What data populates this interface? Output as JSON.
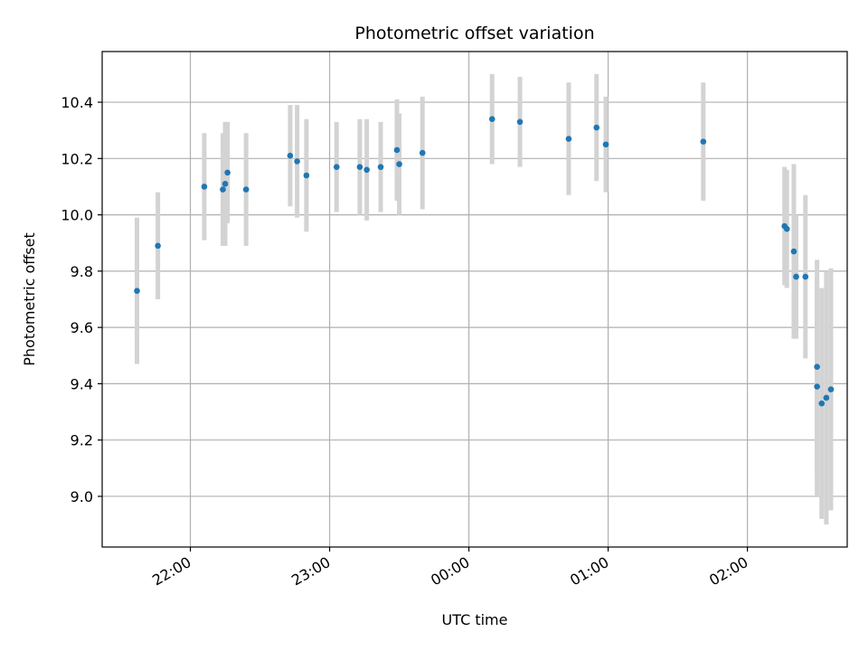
{
  "chart_data": {
    "type": "scatter",
    "title": "Photometric offset variation",
    "xlabel": "UTC time",
    "ylabel": "Photometric offset",
    "xlim": [
      "21:22",
      "02:43"
    ],
    "ylim": [
      8.82,
      10.58
    ],
    "grid": true,
    "x_ticks": [
      "22:00",
      "23:00",
      "00:00",
      "01:00",
      "02:00"
    ],
    "y_ticks": [
      "9.0",
      "9.2",
      "9.4",
      "9.6",
      "9.8",
      "10.0",
      "10.2",
      "10.4"
    ],
    "colors": {
      "point": "#1f77b4",
      "errorbar": "#d3d3d3",
      "grid": "#b0b0b0"
    },
    "points": [
      {
        "x": "21:37",
        "y": 9.73,
        "err": 0.26
      },
      {
        "x": "21:46",
        "y": 9.89,
        "err": 0.19
      },
      {
        "x": "22:06",
        "y": 10.1,
        "err": 0.19
      },
      {
        "x": "22:14",
        "y": 10.09,
        "err": 0.2
      },
      {
        "x": "22:15",
        "y": 10.11,
        "err": 0.22
      },
      {
        "x": "22:16",
        "y": 10.15,
        "err": 0.18
      },
      {
        "x": "22:24",
        "y": 10.09,
        "err": 0.2
      },
      {
        "x": "22:43",
        "y": 10.21,
        "err": 0.18
      },
      {
        "x": "22:46",
        "y": 10.19,
        "err": 0.2
      },
      {
        "x": "22:50",
        "y": 10.14,
        "err": 0.2
      },
      {
        "x": "23:03",
        "y": 10.17,
        "err": 0.16
      },
      {
        "x": "23:13",
        "y": 10.17,
        "err": 0.17
      },
      {
        "x": "23:16",
        "y": 10.16,
        "err": 0.18
      },
      {
        "x": "23:22",
        "y": 10.17,
        "err": 0.16
      },
      {
        "x": "23:29",
        "y": 10.23,
        "err": 0.18
      },
      {
        "x": "23:30",
        "y": 10.18,
        "err": 0.18
      },
      {
        "x": "23:40",
        "y": 10.22,
        "err": 0.2
      },
      {
        "x": "00:10",
        "y": 10.34,
        "err": 0.16
      },
      {
        "x": "00:22",
        "y": 10.33,
        "err": 0.16
      },
      {
        "x": "00:43",
        "y": 10.27,
        "err": 0.2
      },
      {
        "x": "00:55",
        "y": 10.31,
        "err": 0.19
      },
      {
        "x": "00:59",
        "y": 10.25,
        "err": 0.17
      },
      {
        "x": "01:41",
        "y": 10.26,
        "err": 0.21
      },
      {
        "x": "02:16",
        "y": 9.96,
        "err": 0.21
      },
      {
        "x": "02:17",
        "y": 9.95,
        "err": 0.21
      },
      {
        "x": "02:20",
        "y": 9.87,
        "err": 0.31
      },
      {
        "x": "02:21",
        "y": 9.78,
        "err": 0.22
      },
      {
        "x": "02:25",
        "y": 9.78,
        "err": 0.29
      },
      {
        "x": "02:30",
        "y": 9.46,
        "err": 0.38
      },
      {
        "x": "02:30",
        "y": 9.39,
        "err": 0.39
      },
      {
        "x": "02:32",
        "y": 9.33,
        "err": 0.41
      },
      {
        "x": "02:34",
        "y": 9.35,
        "err": 0.45
      },
      {
        "x": "02:36",
        "y": 9.38,
        "err": 0.43
      }
    ]
  }
}
